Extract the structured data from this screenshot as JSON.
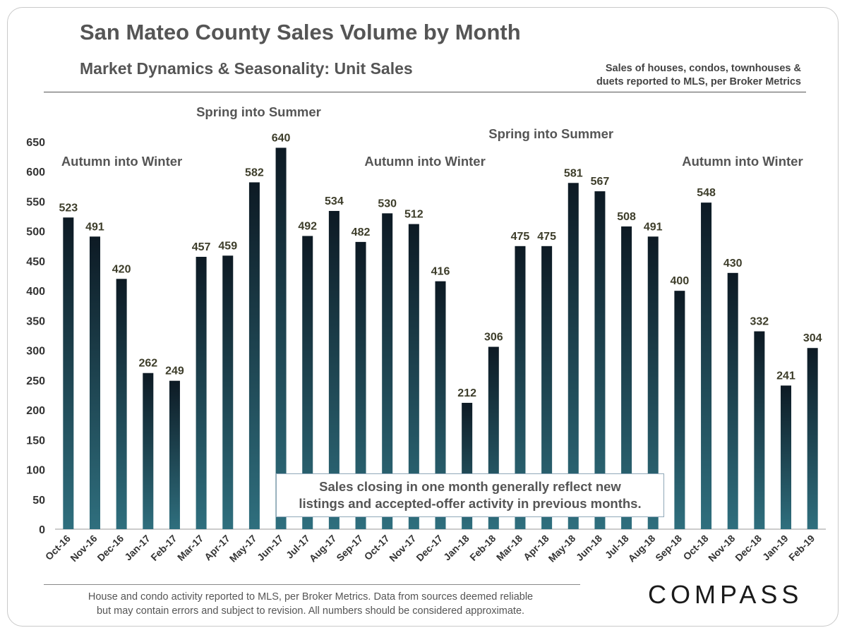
{
  "header": {
    "title": "San Mateo County Sales Volume by Month",
    "subtitle": "Market Dynamics & Seasonality: Unit Sales",
    "source_line1": "Sales of houses, condos, townhouses &",
    "source_line2": "duets reported to MLS, per Broker Metrics"
  },
  "callout": {
    "line1": "Sales closing in one month generally reflect new",
    "line2": "listings and accepted-offer activity in previous months."
  },
  "footer": {
    "line1": "House and condo activity reported to MLS, per Broker Metrics. Data from sources deemed reliable",
    "line2": "but may contain errors and subject to revision.  All numbers should be considered approximate."
  },
  "logo": {
    "text": "COMPASS"
  },
  "chart_data": {
    "type": "bar",
    "title": "San Mateo County Sales Volume by Month",
    "subtitle": "Market Dynamics & Seasonality: Unit Sales",
    "categories": [
      "Oct-16",
      "Nov-16",
      "Dec-16",
      "Jan-17",
      "Feb-17",
      "Mar-17",
      "Apr-17",
      "May-17",
      "Jun-17",
      "Jul-17",
      "Aug-17",
      "Sep-17",
      "Oct-17",
      "Nov-17",
      "Dec-17",
      "Jan-18",
      "Feb-18",
      "Mar-18",
      "Apr-18",
      "May-18",
      "Jun-18",
      "Jul-18",
      "Aug-18",
      "Sep-18",
      "Oct-18",
      "Nov-18",
      "Dec-18",
      "Jan-19",
      "Feb-19"
    ],
    "values": [
      523,
      491,
      420,
      262,
      249,
      457,
      459,
      582,
      640,
      492,
      534,
      482,
      530,
      512,
      416,
      212,
      306,
      475,
      475,
      581,
      567,
      508,
      491,
      400,
      548,
      430,
      332,
      241,
      304
    ],
    "ylim": [
      0,
      650
    ],
    "yticks": [
      0,
      50,
      100,
      150,
      200,
      250,
      300,
      350,
      400,
      450,
      500,
      550,
      600,
      650
    ],
    "xlabel": "",
    "ylabel": "",
    "grid": false,
    "legend": "none",
    "bar_color_top": "#0d1a24",
    "bar_color_bottom": "#2f6f7e",
    "annotations": [
      {
        "text": "Autumn into Winter",
        "category": "Oct-16",
        "value": 617
      },
      {
        "text": "Spring into Summer",
        "category": "Jun-17",
        "value": 700
      },
      {
        "text": "Autumn into Winter",
        "category": "Nov-17",
        "value": 617
      },
      {
        "text": "Spring into Summer",
        "category": "May-18",
        "value": 663
      },
      {
        "text": "Autumn into Winter",
        "category": "Nov-18",
        "value": 617
      }
    ]
  }
}
